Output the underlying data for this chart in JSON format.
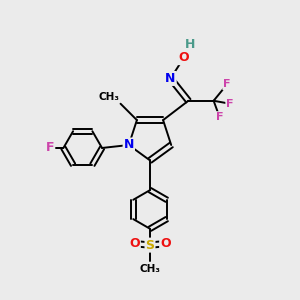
{
  "bg_color": "#ebebeb",
  "atom_colors": {
    "C": "#000000",
    "H": "#4a9a8a",
    "O": "#ee1111",
    "N": "#0000ee",
    "F": "#cc44aa",
    "S": "#ccaa00",
    "default": "#000000"
  },
  "bond_color": "#000000",
  "bond_width": 1.4,
  "font_size_atom": 8,
  "font_size_small": 7
}
